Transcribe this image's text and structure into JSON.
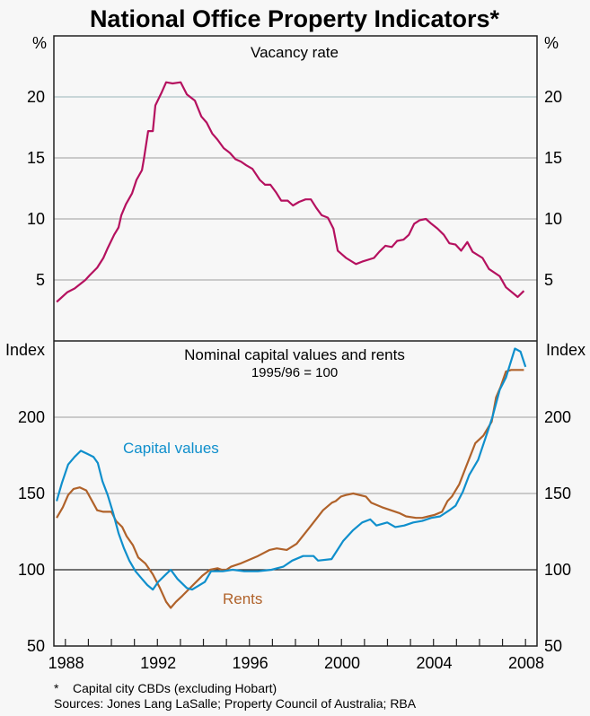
{
  "chart_data": [
    {
      "type": "line",
      "title": "Vacancy rate",
      "ylabel_left": "%",
      "ylabel_right": "%",
      "ylim": [
        0,
        25
      ],
      "yticks": [
        5,
        10,
        15,
        20
      ],
      "ytick_labels": [
        "5",
        "10",
        "15",
        "20"
      ],
      "grid": true,
      "series": [
        {
          "name": "Vacancy rate",
          "color": "#b5115f",
          "x": [
            1987.62,
            1988.09,
            1988.4,
            1988.87,
            1989.06,
            1989.38,
            1989.65,
            1989.84,
            1990.12,
            1990.31,
            1990.43,
            1990.63,
            1990.9,
            1991.09,
            1991.33,
            1991.41,
            1991.6,
            1991.8,
            1991.91,
            1992.19,
            1992.38,
            1992.66,
            1993.01,
            1993.28,
            1993.63,
            1993.91,
            1994.14,
            1994.38,
            1994.61,
            1994.88,
            1995.16,
            1995.39,
            1995.63,
            1995.86,
            1996.13,
            1996.45,
            1996.68,
            1996.91,
            1997.15,
            1997.38,
            1997.66,
            1997.89,
            1998.16,
            1998.44,
            1998.67,
            1998.91,
            1999.14,
            1999.41,
            1999.65,
            1999.84,
            2000.2,
            2000.63,
            2000.9,
            2001.41,
            2001.64,
            2001.91,
            2002.19,
            2002.42,
            2002.7,
            2002.93,
            2003.16,
            2003.4,
            2003.67,
            2003.91,
            2004.18,
            2004.45,
            2004.69,
            2004.96,
            2005.2,
            2005.47,
            2005.7,
            2006.13,
            2006.41,
            2006.88,
            2007.15,
            2007.66,
            2007.93
          ],
          "y": [
            3.2,
            4.0,
            4.3,
            5.0,
            5.4,
            6.0,
            6.8,
            7.6,
            8.7,
            9.3,
            10.3,
            11.2,
            12.1,
            13.2,
            14.0,
            14.9,
            17.2,
            17.2,
            19.3,
            20.4,
            21.2,
            21.1,
            21.2,
            20.2,
            19.7,
            18.4,
            17.9,
            17.0,
            16.5,
            15.8,
            15.4,
            14.9,
            14.7,
            14.4,
            14.1,
            13.2,
            12.8,
            12.8,
            12.2,
            11.5,
            11.5,
            11.1,
            11.4,
            11.6,
            11.6,
            10.9,
            10.3,
            10.1,
            9.2,
            7.4,
            6.8,
            6.3,
            6.5,
            6.8,
            7.3,
            7.8,
            7.7,
            8.2,
            8.3,
            8.7,
            9.6,
            9.9,
            10.0,
            9.6,
            9.2,
            8.7,
            8.0,
            7.9,
            7.4,
            8.1,
            7.3,
            6.8,
            5.9,
            5.3,
            4.4,
            3.6,
            4.1
          ]
        }
      ]
    },
    {
      "type": "line",
      "title": "Nominal capital values and rents",
      "subtitle": "1995/96 = 100",
      "ylabel_left": "Index",
      "ylabel_right": "Index",
      "ylim": [
        50,
        250
      ],
      "yticks": [
        50,
        100,
        150,
        200
      ],
      "ytick_labels": [
        "50",
        "100",
        "150",
        "200"
      ],
      "xlim": [
        1987.5,
        2008.5
      ],
      "xticks": [
        1988,
        1992,
        1996,
        2000,
        2004,
        2008
      ],
      "xtick_labels": [
        "1988",
        "1992",
        "1996",
        "2000",
        "2004",
        "2008"
      ],
      "grid": true,
      "series": [
        {
          "name": "Capital values",
          "label": "Capital values",
          "color": "#0f8fcc",
          "x": [
            1987.62,
            1987.85,
            1988.12,
            1988.4,
            1988.67,
            1988.95,
            1989.22,
            1989.41,
            1989.61,
            1989.84,
            1990.08,
            1990.31,
            1990.55,
            1990.78,
            1991.05,
            1991.33,
            1991.56,
            1991.8,
            1992.03,
            1992.3,
            1992.58,
            1992.87,
            1993.28,
            1993.51,
            1994.06,
            1994.33,
            1994.84,
            1995.27,
            1995.78,
            1996.37,
            1996.96,
            1997.47,
            1997.86,
            1998.33,
            1998.79,
            1998.98,
            1999.57,
            2000.08,
            2000.51,
            2000.9,
            2001.25,
            2001.52,
            2001.99,
            2002.34,
            2002.73,
            2003.12,
            2003.51,
            2003.9,
            2004.29,
            2004.69,
            2004.96,
            2005.27,
            2005.55,
            2005.94,
            2006.25,
            2006.56,
            2006.88,
            2007.15,
            2007.54,
            2007.78,
            2008.0
          ],
          "y": [
            145,
            157,
            169,
            174,
            178,
            176,
            174,
            170,
            158,
            149,
            137,
            124,
            114,
            106,
            99,
            94,
            90,
            87,
            92,
            96,
            100,
            94,
            88,
            87,
            92,
            99,
            99,
            100,
            99,
            99,
            100,
            102,
            106,
            109,
            109,
            106,
            107,
            119,
            126,
            131,
            133,
            129,
            131,
            128,
            129,
            131,
            132,
            134,
            135,
            139,
            142,
            151,
            162,
            172,
            186,
            200,
            218,
            226,
            245,
            243,
            233
          ]
        },
        {
          "name": "Rents",
          "label": "Rents",
          "color": "#b0622a",
          "x": [
            1987.62,
            1987.89,
            1988.12,
            1988.36,
            1988.63,
            1988.91,
            1989.38,
            1989.65,
            1990.0,
            1990.2,
            1990.47,
            1990.66,
            1990.94,
            1991.17,
            1991.48,
            1991.8,
            1992.11,
            1992.38,
            1992.58,
            1992.81,
            1993.09,
            1993.55,
            1993.95,
            1994.29,
            1994.61,
            1994.8,
            1995.0,
            1995.2,
            1995.59,
            1996.06,
            1996.37,
            1996.88,
            1997.19,
            1997.62,
            1998.05,
            1998.63,
            1999.2,
            1999.59,
            1999.75,
            1999.98,
            2000.2,
            2000.51,
            2001.06,
            2001.29,
            2001.76,
            2002.15,
            2002.54,
            2002.81,
            2003.24,
            2003.51,
            2003.78,
            2004.05,
            2004.37,
            2004.61,
            2004.8,
            2005.12,
            2005.43,
            2005.82,
            2006.17,
            2006.53,
            2006.72,
            2006.92,
            2007.15,
            2007.38,
            2007.66,
            2007.93
          ],
          "y": [
            134,
            141,
            149,
            153,
            154,
            152,
            139,
            138,
            138,
            132,
            128,
            122,
            116,
            108,
            104,
            97,
            88,
            79,
            75,
            79,
            83,
            90,
            96,
            100,
            101,
            100,
            100,
            102,
            104,
            107,
            109,
            113,
            114,
            113,
            117,
            128,
            139,
            144,
            145,
            148,
            149,
            150,
            148,
            144,
            141,
            139,
            137,
            135,
            134,
            134,
            135,
            136,
            138,
            145,
            148,
            156,
            168,
            183,
            188,
            197,
            213,
            220,
            230,
            231,
            231,
            231
          ]
        }
      ]
    }
  ],
  "header": {
    "title": "National Office Property Indicators*"
  },
  "footer": {
    "note": "*    Capital city CBDs (excluding Hobart)",
    "sources": "Sources: Jones Lang LaSalle; Property Council of Australia; RBA"
  }
}
